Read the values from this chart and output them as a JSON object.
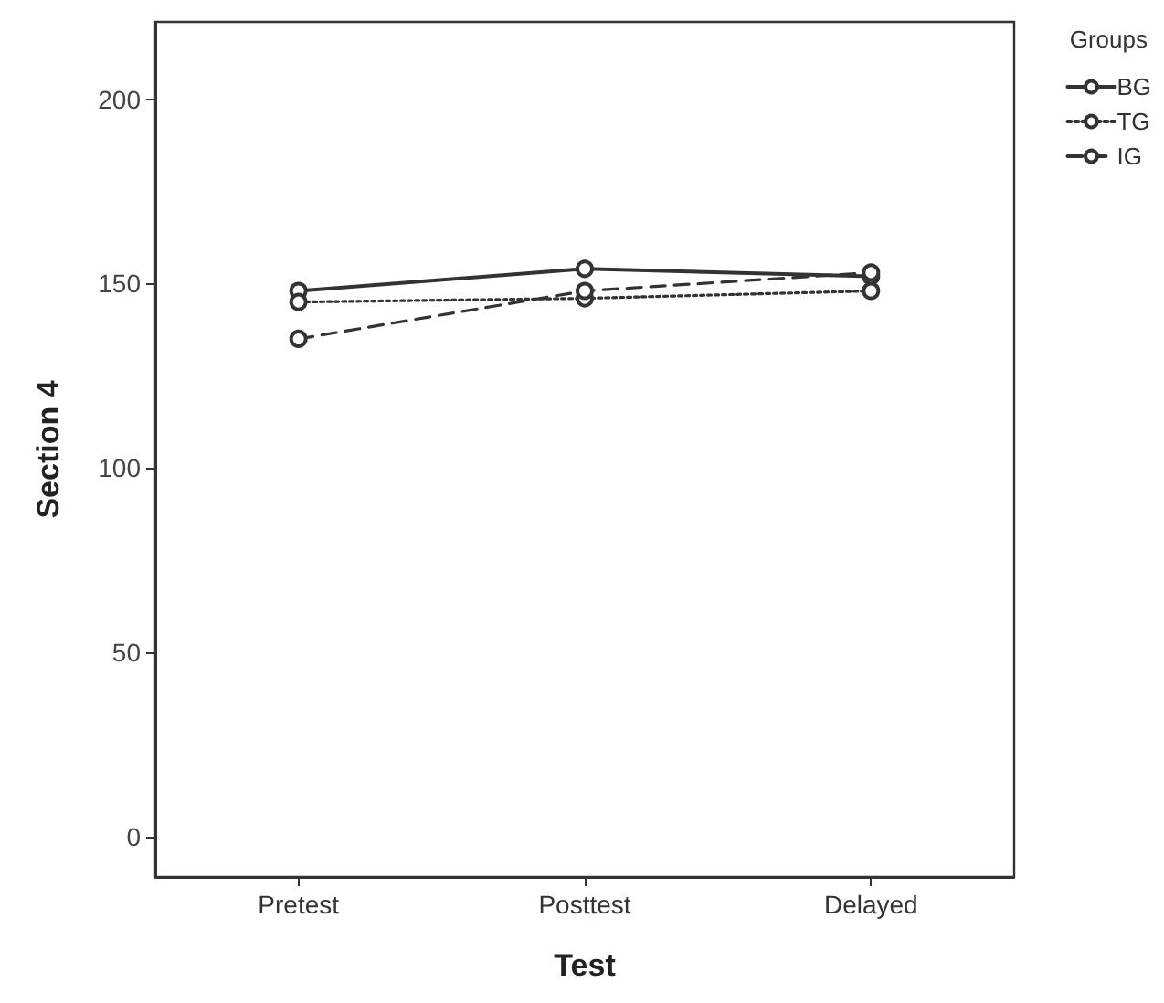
{
  "chart_data": {
    "type": "line",
    "xlabel": "Test",
    "ylabel": "Section 4",
    "legend_title": "Groups",
    "legend": "top right",
    "marker": "circle",
    "grid": false,
    "categories": [
      "Pretest",
      "Posttest",
      "Delayed"
    ],
    "ylim": [
      -11,
      221
    ],
    "yticks": [
      0,
      50,
      100,
      150,
      200
    ],
    "series": [
      {
        "name": "BG",
        "color": "#333333",
        "line_style": "solid",
        "values": [
          148,
          154,
          152
        ]
      },
      {
        "name": "TG",
        "color": "#333333",
        "line_style": "dotted",
        "values": [
          145,
          146,
          148
        ]
      },
      {
        "name": "IG",
        "color": "#333333",
        "line_style": "dashed",
        "values": [
          135,
          148,
          153
        ]
      }
    ]
  }
}
